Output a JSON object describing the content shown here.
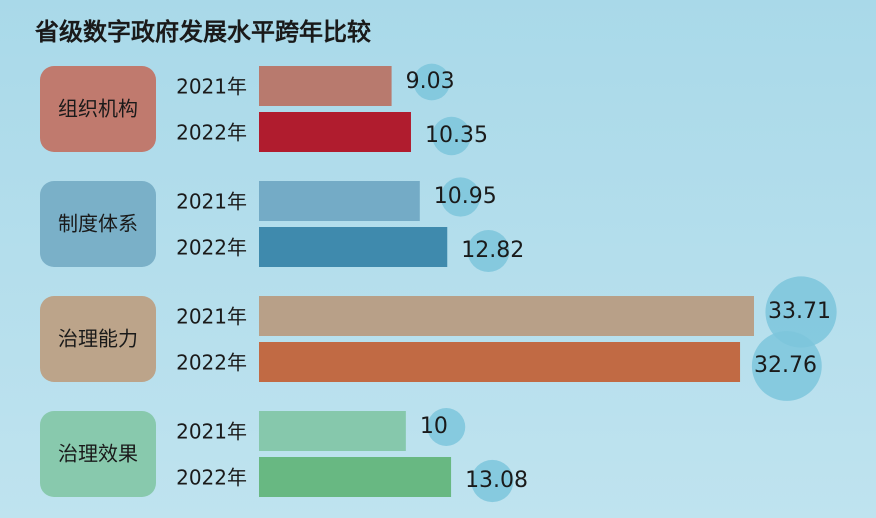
{
  "chart_data": {
    "type": "grouped-hbar",
    "title": "省级数字政府发展水平跨年比较",
    "categories": [
      "组织机构",
      "制度体系",
      "治理能力",
      "治理效果"
    ],
    "category_colors": [
      "#c07a6e",
      "#7ab0c8",
      "#bca48a",
      "#88c9ad"
    ],
    "series": [
      {
        "name": "2021年",
        "colors": [
          "#b87a6e",
          "#74abc6",
          "#b8a088",
          "#86c8ac"
        ],
        "values": [
          9.03,
          10.95,
          33.71,
          10
        ]
      },
      {
        "name": "2022年",
        "colors": [
          "#b01c2e",
          "#3f8aad",
          "#c16a44",
          "#68b882"
        ],
        "values": [
          10.35,
          12.82,
          32.76,
          13.08
        ]
      }
    ],
    "bubble_color": "#7cc6dc"
  }
}
